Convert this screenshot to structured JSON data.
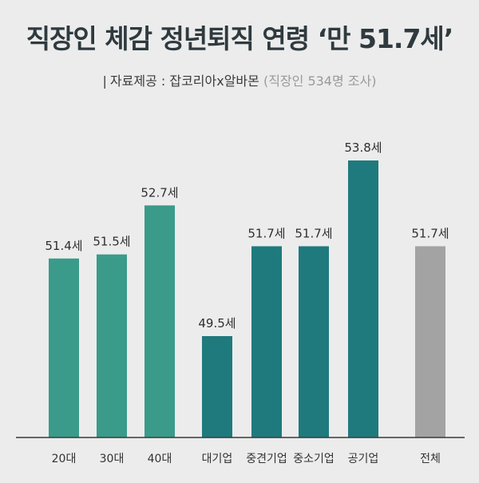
{
  "title": "직장인 체감 정년퇴직 연령 ‘만 51.7세’",
  "subtitle": {
    "source": "자료제공 : 잡코리아x알바몬",
    "note": "(직장인 534명 조사)"
  },
  "colors": {
    "age_group": "#3a9b8a",
    "company_type": "#1f7a7d",
    "overall": "#a3a3a3",
    "baseline": "#3a3a3a"
  },
  "chart_data": {
    "type": "bar",
    "categories": [
      "20대",
      "30대",
      "40대",
      "대기업",
      "중견기업",
      "중소기업",
      "공기업",
      "전체"
    ],
    "values": [
      51.4,
      51.5,
      52.7,
      49.5,
      51.7,
      51.7,
      53.8,
      51.7
    ],
    "data_labels": [
      "51.4세",
      "51.5세",
      "52.7세",
      "49.5세",
      "51.7세",
      "51.7세",
      "53.8세",
      "51.7세"
    ],
    "groups": [
      "age_group",
      "age_group",
      "age_group",
      "company_type",
      "company_type",
      "company_type",
      "company_type",
      "overall"
    ],
    "title": "직장인 체감 정년퇴직 연령 ‘만 51.7세’",
    "xlabel": "",
    "ylabel": "",
    "grid": false
  }
}
